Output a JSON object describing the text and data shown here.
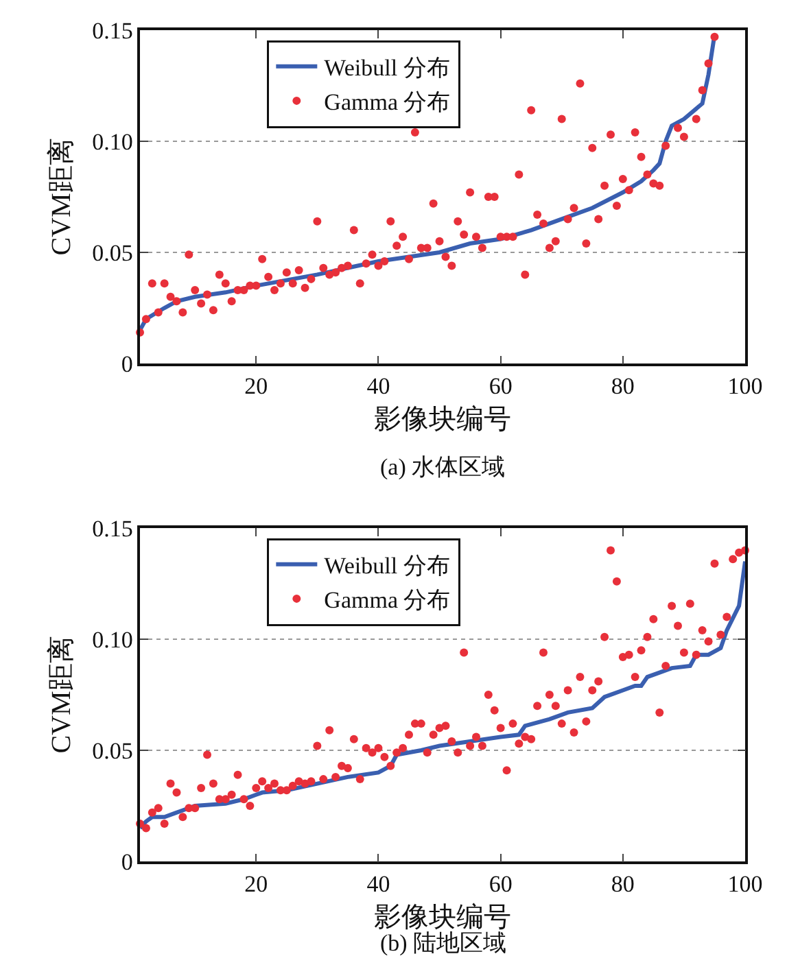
{
  "chart_data": [
    {
      "type": "line",
      "xlabel": "影像块编号",
      "ylabel": "CVM距离",
      "annotations": [
        "(a) 水体区域"
      ],
      "xlim": [
        1,
        100
      ],
      "xticks": [
        20,
        40,
        60,
        80,
        100
      ],
      "ylim": [
        0,
        0.15
      ],
      "yticks": [
        0,
        0.05,
        {
          "value": 0.1,
          "label": "0.10"
        },
        0.15
      ],
      "grid": "y",
      "legend": "top",
      "series": [
        {
          "name": "Weibull 分布",
          "color": "#3a5fb0",
          "marker": "none",
          "line_style": "solid",
          "x": [
            1,
            2,
            5,
            7,
            10,
            15,
            20,
            30,
            40,
            50,
            55,
            60,
            65,
            70,
            75,
            80,
            83,
            85,
            86,
            87,
            88,
            90,
            93,
            94,
            95
          ],
          "values": [
            0.015,
            0.02,
            0.025,
            0.028,
            0.03,
            0.032,
            0.035,
            0.04,
            0.046,
            0.05,
            0.054,
            0.056,
            0.06,
            0.065,
            0.07,
            0.077,
            0.082,
            0.087,
            0.09,
            0.1,
            0.107,
            0.11,
            0.117,
            0.13,
            0.148
          ]
        },
        {
          "name": "Gamma 分布",
          "color": "#e8303a",
          "type": "scatter",
          "marker": "circle",
          "x": [
            1,
            2,
            3,
            4,
            5,
            6,
            7,
            8,
            9,
            10,
            11,
            12,
            13,
            14,
            15,
            16,
            17,
            18,
            19,
            20,
            21,
            22,
            23,
            24,
            25,
            26,
            27,
            28,
            29,
            30,
            31,
            32,
            33,
            34,
            35,
            36,
            37,
            38,
            39,
            40,
            41,
            42,
            43,
            44,
            45,
            46,
            47,
            48,
            49,
            50,
            51,
            52,
            53,
            54,
            55,
            56,
            57,
            58,
            59,
            60,
            61,
            62,
            63,
            64,
            65,
            66,
            67,
            68,
            69,
            70,
            71,
            72,
            73,
            74,
            75,
            76,
            77,
            78,
            79,
            80,
            81,
            82,
            83,
            84,
            85,
            86,
            87,
            89,
            90,
            92,
            93,
            94,
            95
          ],
          "values": [
            0.014,
            0.02,
            0.036,
            0.023,
            0.036,
            0.03,
            0.028,
            0.023,
            0.049,
            0.033,
            0.027,
            0.031,
            0.024,
            0.04,
            0.036,
            0.028,
            0.033,
            0.033,
            0.035,
            0.035,
            0.047,
            0.039,
            0.033,
            0.036,
            0.041,
            0.036,
            0.042,
            0.034,
            0.038,
            0.064,
            0.043,
            0.04,
            0.041,
            0.043,
            0.044,
            0.06,
            0.036,
            0.045,
            0.049,
            0.044,
            0.046,
            0.064,
            0.053,
            0.057,
            0.047,
            0.104,
            0.052,
            0.052,
            0.072,
            0.055,
            0.048,
            0.044,
            0.064,
            0.058,
            0.077,
            0.057,
            0.052,
            0.075,
            0.075,
            0.057,
            0.057,
            0.057,
            0.085,
            0.04,
            0.114,
            0.067,
            0.063,
            0.052,
            0.055,
            0.11,
            0.065,
            0.07,
            0.126,
            0.054,
            0.097,
            0.065,
            0.08,
            0.103,
            0.071,
            0.083,
            0.078,
            0.104,
            0.093,
            0.085,
            0.081,
            0.08,
            0.098,
            0.106,
            0.102,
            0.11,
            0.123,
            0.135,
            0.147
          ]
        }
      ]
    },
    {
      "type": "line",
      "xlabel": "影像块编号",
      "ylabel": "CVM距离",
      "annotations": [
        "(b) 陆地区域"
      ],
      "xlim": [
        1,
        100
      ],
      "xticks": [
        20,
        40,
        60,
        80,
        100
      ],
      "ylim": [
        0,
        0.15
      ],
      "yticks": [
        0,
        0.05,
        {
          "value": 0.1,
          "label": "0.10"
        },
        0.15
      ],
      "grid": "y",
      "legend": "top",
      "series": [
        {
          "name": "Weibull 分布",
          "color": "#3a5fb0",
          "marker": "none",
          "line_style": "solid",
          "x": [
            1,
            2,
            3,
            5,
            8,
            10,
            15,
            18,
            20,
            21,
            25,
            30,
            35,
            40,
            42,
            43,
            47,
            50,
            55,
            60,
            63,
            64,
            68,
            71,
            75,
            77,
            80,
            82,
            83,
            84,
            86,
            88,
            91,
            92,
            94,
            96,
            97,
            99,
            100
          ],
          "values": [
            0.015,
            0.018,
            0.02,
            0.02,
            0.023,
            0.025,
            0.026,
            0.028,
            0.03,
            0.031,
            0.032,
            0.035,
            0.038,
            0.04,
            0.043,
            0.048,
            0.05,
            0.052,
            0.054,
            0.056,
            0.057,
            0.061,
            0.064,
            0.067,
            0.069,
            0.074,
            0.077,
            0.079,
            0.079,
            0.083,
            0.085,
            0.087,
            0.088,
            0.093,
            0.093,
            0.096,
            0.104,
            0.115,
            0.135
          ]
        },
        {
          "name": "Gamma 分布",
          "color": "#e8303a",
          "type": "scatter",
          "marker": "circle",
          "x": [
            1,
            2,
            3,
            4,
            5,
            6,
            7,
            8,
            9,
            10,
            11,
            12,
            13,
            14,
            15,
            16,
            17,
            18,
            19,
            20,
            21,
            22,
            23,
            24,
            25,
            26,
            27,
            28,
            29,
            30,
            31,
            32,
            33,
            34,
            35,
            36,
            37,
            38,
            39,
            40,
            41,
            42,
            43,
            44,
            45,
            46,
            47,
            48,
            49,
            50,
            51,
            52,
            53,
            54,
            55,
            56,
            57,
            58,
            59,
            60,
            61,
            62,
            63,
            64,
            65,
            66,
            67,
            68,
            69,
            70,
            71,
            72,
            73,
            74,
            75,
            76,
            77,
            78,
            79,
            80,
            81,
            82,
            83,
            84,
            85,
            86,
            87,
            88,
            89,
            90,
            91,
            92,
            93,
            94,
            95,
            96,
            97,
            98,
            99,
            100
          ],
          "values": [
            0.017,
            0.015,
            0.022,
            0.024,
            0.017,
            0.035,
            0.031,
            0.02,
            0.024,
            0.024,
            0.033,
            0.048,
            0.035,
            0.028,
            0.028,
            0.03,
            0.039,
            0.028,
            0.025,
            0.033,
            0.036,
            0.033,
            0.035,
            0.032,
            0.032,
            0.034,
            0.036,
            0.035,
            0.036,
            0.052,
            0.037,
            0.059,
            0.038,
            0.043,
            0.042,
            0.055,
            0.037,
            0.051,
            0.049,
            0.051,
            0.047,
            0.043,
            0.049,
            0.051,
            0.057,
            0.062,
            0.062,
            0.049,
            0.057,
            0.06,
            0.061,
            0.054,
            0.049,
            0.094,
            0.052,
            0.056,
            0.052,
            0.075,
            0.068,
            0.06,
            0.041,
            0.062,
            0.053,
            0.056,
            0.055,
            0.07,
            0.094,
            0.075,
            0.07,
            0.062,
            0.077,
            0.058,
            0.083,
            0.063,
            0.077,
            0.081,
            0.101,
            0.14,
            0.126,
            0.092,
            0.093,
            0.083,
            0.095,
            0.101,
            0.109,
            0.067,
            0.088,
            0.115,
            0.106,
            0.094,
            0.116,
            0.093,
            0.104,
            0.099,
            0.134,
            0.102,
            0.11,
            0.136,
            0.139,
            0.14
          ]
        }
      ]
    }
  ]
}
